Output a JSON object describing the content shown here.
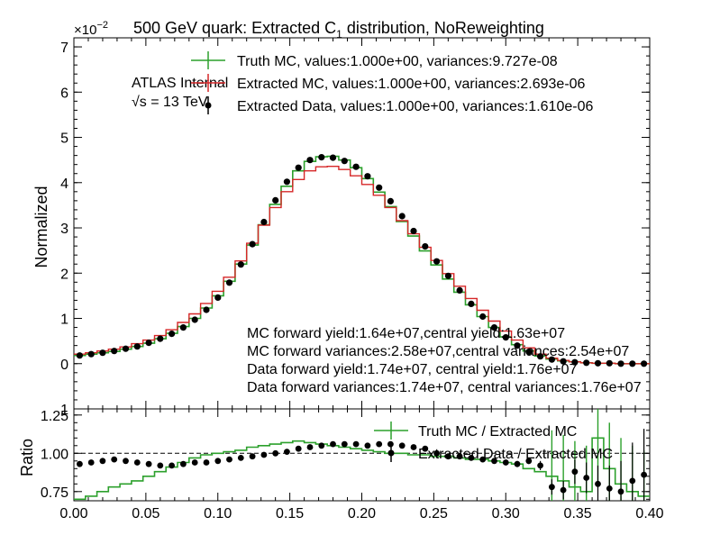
{
  "chart_data": [
    {
      "type": "line",
      "title": "500 GeV quark: Extracted C",
      "title_sub": "1",
      "title_tail": " distribution, NoReweighting",
      "exponent_label": "×10",
      "exponent_power": "−2",
      "ylabel": "Normalized",
      "xlim": [
        0.0,
        0.4
      ],
      "ylim": [
        -1,
        7.2
      ],
      "y_scale_factor": 0.01,
      "yticks": [
        "0",
        "1",
        "2",
        "3",
        "4",
        "5",
        "6",
        "7"
      ],
      "y_edge_tick": "1",
      "atlas_label": "ATLAS Internal",
      "energy_label": "√s =  13 TeV",
      "legend_position": "top-center",
      "legend": [
        "Truth MC, values:1.000e+00, variances:9.727e-08",
        "Extracted MC, values:1.000e+00, variances:2.693e-06",
        "Extracted Data, values:1.000e+00, variances:1.610e-06"
      ],
      "annotations": [
        "MC forward yield:1.64e+07,central yield:1.63e+07",
        "MC forward variances:2.58e+07,central variances:2.54e+07",
        "Data forward yield:1.74e+07, central yield:1.76e+07",
        "Data forward variances:1.74e+07, central variances:1.76e+07"
      ],
      "colors": {
        "truth": "#2ca02c",
        "extracted_mc": "#d62728",
        "data": "#000000"
      },
      "bin_width": 0.008,
      "x": [
        0.004,
        0.012,
        0.02,
        0.028,
        0.036,
        0.044,
        0.052,
        0.06,
        0.068,
        0.076,
        0.084,
        0.092,
        0.1,
        0.108,
        0.116,
        0.124,
        0.132,
        0.14,
        0.148,
        0.156,
        0.164,
        0.172,
        0.18,
        0.188,
        0.196,
        0.204,
        0.212,
        0.22,
        0.228,
        0.236,
        0.244,
        0.252,
        0.26,
        0.268,
        0.276,
        0.284,
        0.292,
        0.3,
        0.308,
        0.316,
        0.324,
        0.332,
        0.34,
        0.348,
        0.356,
        0.364,
        0.372,
        0.38,
        0.388,
        0.396
      ],
      "series": [
        {
          "name": "Truth MC",
          "style": "step",
          "values": [
            0.18,
            0.21,
            0.24,
            0.27,
            0.32,
            0.38,
            0.45,
            0.55,
            0.67,
            0.82,
            1.0,
            1.23,
            1.5,
            1.82,
            2.2,
            2.62,
            3.07,
            3.52,
            3.92,
            4.26,
            4.47,
            4.57,
            4.58,
            4.5,
            4.33,
            4.09,
            3.79,
            3.47,
            3.14,
            2.82,
            2.49,
            2.18,
            1.87,
            1.58,
            1.3,
            1.04,
            0.8,
            0.59,
            0.42,
            0.28,
            0.17,
            0.1,
            0.06,
            0.04,
            0.02,
            0.01,
            0.01,
            0.0,
            0.0,
            0.0
          ]
        },
        {
          "name": "Extracted MC",
          "style": "step",
          "values": [
            0.21,
            0.24,
            0.28,
            0.32,
            0.37,
            0.44,
            0.52,
            0.62,
            0.75,
            0.91,
            1.1,
            1.33,
            1.6,
            1.91,
            2.27,
            2.66,
            3.06,
            3.45,
            3.8,
            4.07,
            4.26,
            4.35,
            4.36,
            4.29,
            4.15,
            3.96,
            3.72,
            3.45,
            3.16,
            2.87,
            2.57,
            2.28,
            1.99,
            1.71,
            1.44,
            1.18,
            0.94,
            0.72,
            0.52,
            0.35,
            0.21,
            0.12,
            0.07,
            0.04,
            0.02,
            0.01,
            0.01,
            0.0,
            0.0,
            0.0
          ]
        },
        {
          "name": "Extracted Data",
          "style": "points",
          "values": [
            0.18,
            0.21,
            0.24,
            0.28,
            0.33,
            0.38,
            0.46,
            0.55,
            0.66,
            0.8,
            0.97,
            1.19,
            1.46,
            1.79,
            2.19,
            2.64,
            3.13,
            3.61,
            4.02,
            4.33,
            4.5,
            4.56,
            4.55,
            4.48,
            4.35,
            4.14,
            3.89,
            3.59,
            3.26,
            2.93,
            2.59,
            2.26,
            1.94,
            1.62,
            1.32,
            1.04,
            0.8,
            0.58,
            0.4,
            0.26,
            0.16,
            0.09,
            0.05,
            0.03,
            0.02,
            0.01,
            0.01,
            0.0,
            0.0,
            0.0
          ]
        }
      ]
    },
    {
      "type": "line",
      "ylabel": "Ratio",
      "xlim": [
        0.0,
        0.4
      ],
      "ylim": [
        0.69,
        1.29
      ],
      "reference_line": 1.0,
      "xticks": [
        "0.00",
        "0.05",
        "0.10",
        "0.15",
        "0.20",
        "0.25",
        "0.30",
        "0.35",
        "0.40"
      ],
      "yticks": [
        "0.75",
        "1.00",
        "1.25"
      ],
      "legend_position": "top-right",
      "legend": [
        "Truth MC / Extracted MC",
        "Extracted Data / Extracted MC"
      ],
      "x": [
        0.004,
        0.012,
        0.02,
        0.028,
        0.036,
        0.044,
        0.052,
        0.06,
        0.068,
        0.076,
        0.084,
        0.092,
        0.1,
        0.108,
        0.116,
        0.124,
        0.132,
        0.14,
        0.148,
        0.156,
        0.164,
        0.172,
        0.18,
        0.188,
        0.196,
        0.204,
        0.212,
        0.22,
        0.228,
        0.236,
        0.244,
        0.252,
        0.26,
        0.268,
        0.276,
        0.284,
        0.292,
        0.3,
        0.308,
        0.316,
        0.324,
        0.332,
        0.34,
        0.348,
        0.356,
        0.364,
        0.372,
        0.38,
        0.388,
        0.396
      ],
      "series": [
        {
          "name": "Truth MC / Extracted MC",
          "style": "step",
          "values": [
            0.7,
            0.72,
            0.75,
            0.78,
            0.8,
            0.82,
            0.85,
            0.88,
            0.91,
            0.94,
            0.97,
            0.99,
            1.0,
            1.01,
            1.02,
            1.04,
            1.05,
            1.06,
            1.07,
            1.08,
            1.07,
            1.06,
            1.05,
            1.04,
            1.03,
            1.02,
            1.01,
            1.0,
            1.0,
            0.99,
            0.99,
            0.98,
            0.98,
            0.97,
            0.96,
            0.96,
            0.95,
            0.94,
            0.93,
            0.9,
            0.88,
            0.85,
            0.82,
            0.78,
            0.75,
            1.1,
            0.9,
            0.8,
            0.75,
            0.72
          ]
        },
        {
          "name": "Extracted Data / Extracted MC",
          "style": "points",
          "values": [
            0.93,
            0.94,
            0.95,
            0.96,
            0.95,
            0.94,
            0.93,
            0.92,
            0.92,
            0.93,
            0.94,
            0.94,
            0.95,
            0.96,
            0.97,
            0.98,
            0.99,
            1.0,
            1.01,
            1.03,
            1.04,
            1.05,
            1.06,
            1.06,
            1.06,
            1.05,
            1.06,
            1.06,
            1.05,
            1.04,
            1.03,
            1.0,
            0.98,
            0.98,
            0.97,
            0.96,
            0.95,
            0.94,
            0.93,
            0.95,
            0.92,
            0.78,
            0.76,
            0.88,
            0.84,
            0.8,
            0.77,
            0.75,
            0.82,
            0.86
          ],
          "errors": [
            0.01,
            0.01,
            0.01,
            0.01,
            0.01,
            0.01,
            0.01,
            0.01,
            0.01,
            0.01,
            0.01,
            0.01,
            0.01,
            0.01,
            0.01,
            0.01,
            0.01,
            0.01,
            0.01,
            0.01,
            0.01,
            0.01,
            0.01,
            0.01,
            0.01,
            0.01,
            0.01,
            0.01,
            0.01,
            0.01,
            0.01,
            0.01,
            0.01,
            0.01,
            0.01,
            0.01,
            0.01,
            0.01,
            0.02,
            0.02,
            0.03,
            0.05,
            0.06,
            0.08,
            0.1,
            0.12,
            0.15,
            0.2,
            0.25,
            0.3
          ]
        }
      ]
    }
  ]
}
